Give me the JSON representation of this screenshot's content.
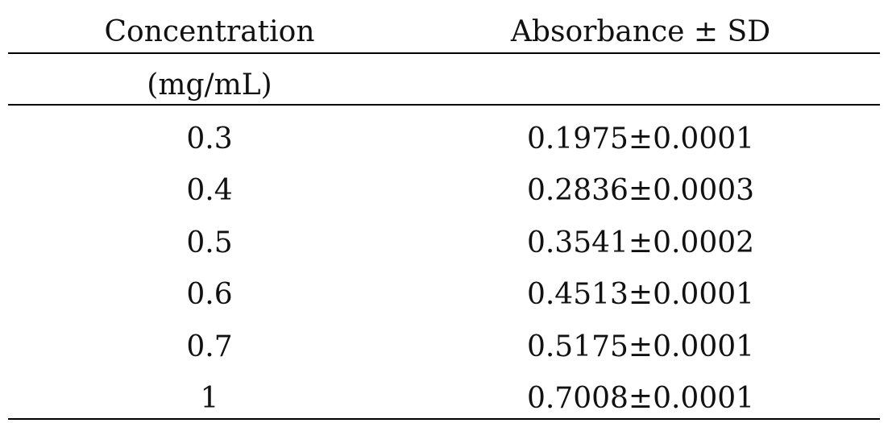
{
  "table": {
    "header": [
      "Concentration",
      "Absorbance ± SD"
    ],
    "header_unit": "(mg/mL)",
    "rows": [
      [
        "0.3",
        "0.1975±0.0001"
      ],
      [
        "0.4",
        "0.2836±0.0003"
      ],
      [
        "0.5",
        "0.3541±0.0002"
      ],
      [
        "0.6",
        "0.4513±0.0001"
      ],
      [
        "0.7",
        "0.5175±0.0001"
      ],
      [
        "1",
        "0.7008±0.0001"
      ]
    ]
  }
}
